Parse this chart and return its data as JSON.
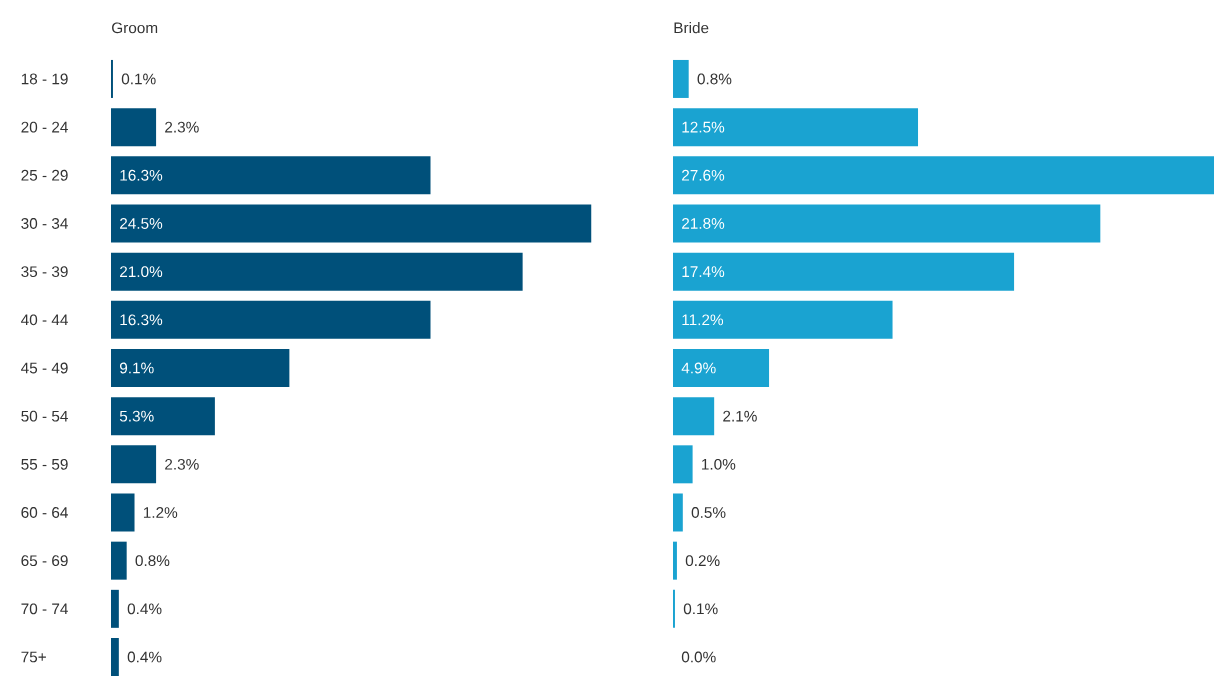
{
  "chart_data": [
    {
      "type": "bar",
      "orientation": "horizontal",
      "title": "Groom",
      "tick_labels": "y",
      "color": "#00507a",
      "categories": [
        "18 - 19",
        "20 - 24",
        "25 - 29",
        "30 - 34",
        "35 - 39",
        "40 - 44",
        "45 - 49",
        "50 - 54",
        "55 - 59",
        "60 - 64",
        "65 - 69",
        "70 - 74",
        "75+"
      ],
      "values": [
        0.1,
        2.3,
        16.3,
        24.5,
        21.0,
        16.3,
        9.1,
        5.3,
        2.3,
        1.2,
        0.8,
        0.4,
        0.4
      ],
      "value_labels": [
        "0.1%",
        "2.3%",
        "16.3%",
        "24.5%",
        "21.0%",
        "16.3%",
        "9.1%",
        "5.3%",
        "2.3%",
        "1.2%",
        "0.8%",
        "0.4%",
        "0.4%"
      ]
    },
    {
      "type": "bar",
      "orientation": "horizontal",
      "title": "Bride",
      "tick_labels": false,
      "color": "#1aa3d1",
      "categories": [
        null,
        null,
        null,
        null,
        null,
        null,
        null,
        null,
        null,
        null,
        null,
        null,
        null
      ],
      "values": [
        0.8,
        12.5,
        27.6,
        21.8,
        17.4,
        11.2,
        4.9,
        2.1,
        1.0,
        0.5,
        0.2,
        0.1,
        0.0
      ],
      "value_labels": [
        "0.8%",
        "12.5%",
        "27.6%",
        "21.8%",
        "17.4%",
        "11.2%",
        "4.9%",
        "2.1%",
        "1.0%",
        "0.5%",
        "0.2%",
        "0.1%",
        "0.0%"
      ]
    }
  ]
}
